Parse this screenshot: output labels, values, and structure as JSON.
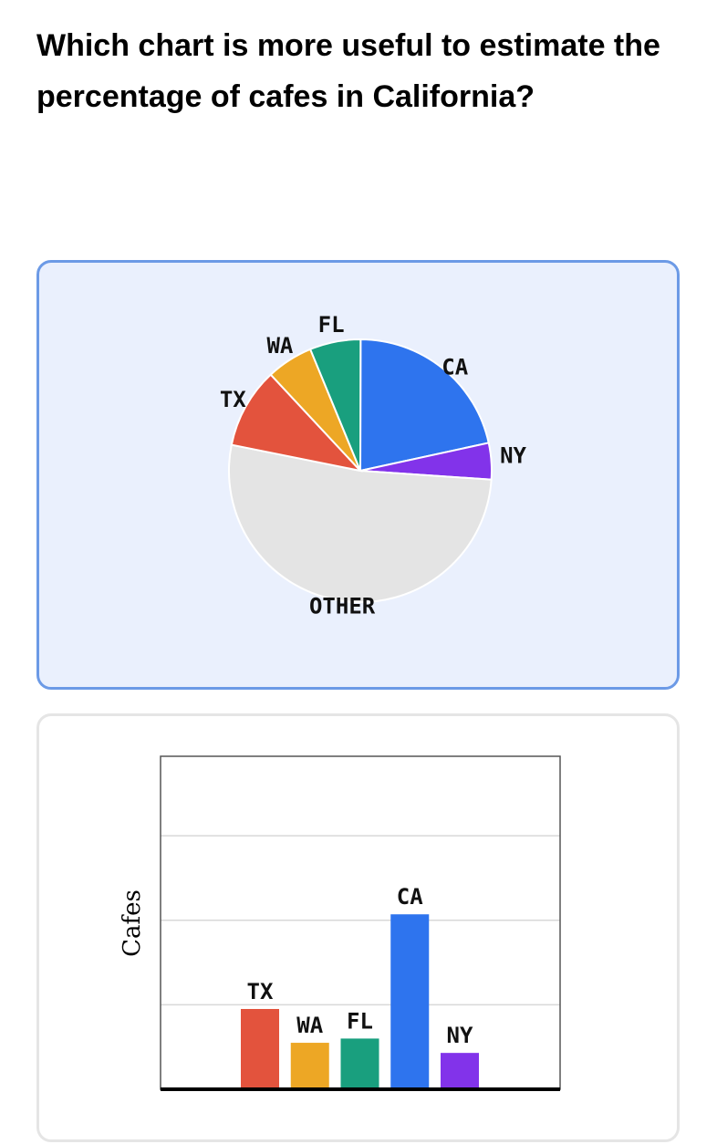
{
  "question": {
    "text": "Which chart is more useful to estimate the percentage of cafes in California?"
  },
  "options": [
    {
      "id": "pie",
      "selected": true
    },
    {
      "id": "bar",
      "selected": false
    }
  ],
  "chart_data": [
    {
      "type": "pie",
      "title": "",
      "categories": [
        "CA",
        "NY",
        "OTHER",
        "TX",
        "WA",
        "FL"
      ],
      "values": [
        20.7,
        4.3,
        50.0,
        9.5,
        5.5,
        6.0
      ],
      "colors": [
        "#2e74ee",
        "#8233ea",
        "#e4e4e4",
        "#e3533d",
        "#eda725",
        "#199f7e"
      ],
      "labels": [
        "CA",
        "NY",
        "OTHER",
        "TX",
        "WA",
        "FL"
      ]
    },
    {
      "type": "bar",
      "title": "",
      "xlabel": "",
      "ylabel": "Cafes",
      "categories": [
        "TX",
        "WA",
        "FL",
        "CA",
        "NY"
      ],
      "values": [
        9.5,
        5.5,
        6.0,
        20.7,
        4.3
      ],
      "colors": [
        "#e3533d",
        "#eda725",
        "#199f7e",
        "#2e74ee",
        "#8233ea"
      ],
      "ylim": [
        0,
        39.4
      ],
      "grid": true,
      "gridlines": [
        10,
        20,
        30
      ]
    }
  ]
}
